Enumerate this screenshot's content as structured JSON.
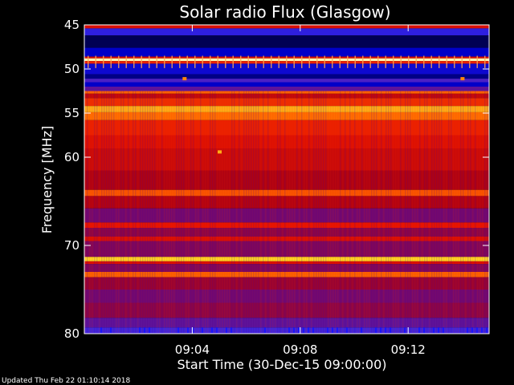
{
  "chart_data": {
    "type": "heatmap",
    "title": "Solar radio Flux (Glasgow)",
    "xlabel": "Start Time (30-Dec-15 09:00:00)",
    "ylabel": "Frequency [MHz]",
    "x_unit": "minutes after 09:00:00",
    "xlim": [
      0,
      15
    ],
    "ylim": [
      45,
      80
    ],
    "y_reversed": true,
    "x_ticks": [
      {
        "value": 4,
        "label": "09:04"
      },
      {
        "value": 8,
        "label": "09:08"
      },
      {
        "value": 12,
        "label": "09:12"
      }
    ],
    "y_ticks": [
      {
        "value": 45,
        "label": "45"
      },
      {
        "value": 50,
        "label": "50"
      },
      {
        "value": 55,
        "label": "55"
      },
      {
        "value": 60,
        "label": "60"
      },
      {
        "value": 70,
        "label": "70"
      },
      {
        "value": 80,
        "label": "80"
      }
    ],
    "bands": [
      {
        "from": 45.0,
        "to": 45.4,
        "level": 0.55
      },
      {
        "from": 45.4,
        "to": 46.2,
        "level": 0.22
      },
      {
        "from": 46.2,
        "to": 47.6,
        "level": 0.05
      },
      {
        "from": 47.6,
        "to": 48.6,
        "level": 0.12
      },
      {
        "from": 48.6,
        "to": 48.8,
        "level": 0.55
      },
      {
        "from": 48.8,
        "to": 49.1,
        "level": 0.95
      },
      {
        "from": 49.1,
        "to": 49.4,
        "level": 0.6
      },
      {
        "from": 49.4,
        "to": 50.6,
        "level": 0.15
      },
      {
        "from": 50.6,
        "to": 51.1,
        "level": 0.08
      },
      {
        "from": 51.1,
        "to": 51.5,
        "level": 0.28
      },
      {
        "from": 51.5,
        "to": 52.0,
        "level": 0.12
      },
      {
        "from": 52.0,
        "to": 52.5,
        "level": 0.32
      },
      {
        "from": 52.5,
        "to": 52.8,
        "level": 0.7
      },
      {
        "from": 52.8,
        "to": 53.3,
        "level": 0.5
      },
      {
        "from": 53.3,
        "to": 54.2,
        "level": 0.62
      },
      {
        "from": 54.2,
        "to": 54.9,
        "level": 0.8
      },
      {
        "from": 54.9,
        "to": 55.8,
        "level": 0.72
      },
      {
        "from": 55.8,
        "to": 57.5,
        "level": 0.6
      },
      {
        "from": 57.5,
        "to": 59.0,
        "level": 0.56
      },
      {
        "from": 59.0,
        "to": 61.5,
        "level": 0.52
      },
      {
        "from": 61.5,
        "to": 63.7,
        "level": 0.46
      },
      {
        "from": 63.7,
        "to": 64.4,
        "level": 0.68
      },
      {
        "from": 64.4,
        "to": 65.8,
        "level": 0.47
      },
      {
        "from": 65.8,
        "to": 67.4,
        "level": 0.36
      },
      {
        "from": 67.4,
        "to": 68.0,
        "level": 0.58
      },
      {
        "from": 68.0,
        "to": 69.0,
        "level": 0.4
      },
      {
        "from": 69.0,
        "to": 69.5,
        "level": 0.55
      },
      {
        "from": 69.5,
        "to": 71.3,
        "level": 0.38
      },
      {
        "from": 71.3,
        "to": 71.8,
        "level": 0.85
      },
      {
        "from": 71.8,
        "to": 72.1,
        "level": 0.55
      },
      {
        "from": 72.1,
        "to": 73.0,
        "level": 0.38
      },
      {
        "from": 73.0,
        "to": 73.6,
        "level": 0.7
      },
      {
        "from": 73.6,
        "to": 75.0,
        "level": 0.42
      },
      {
        "from": 75.0,
        "to": 76.5,
        "level": 0.36
      },
      {
        "from": 76.5,
        "to": 78.2,
        "level": 0.4
      },
      {
        "from": 78.2,
        "to": 79.3,
        "level": 0.32
      },
      {
        "from": 79.3,
        "to": 80.0,
        "level": 0.26
      }
    ],
    "spots": [
      {
        "x": 3.7,
        "y": 51.1,
        "level": 0.75
      },
      {
        "x": 5.0,
        "y": 59.4,
        "level": 0.8
      },
      {
        "x": 14.0,
        "y": 51.1,
        "level": 0.75
      }
    ]
  },
  "footer": "Updated Thu Feb 22 01:10:14 2018"
}
